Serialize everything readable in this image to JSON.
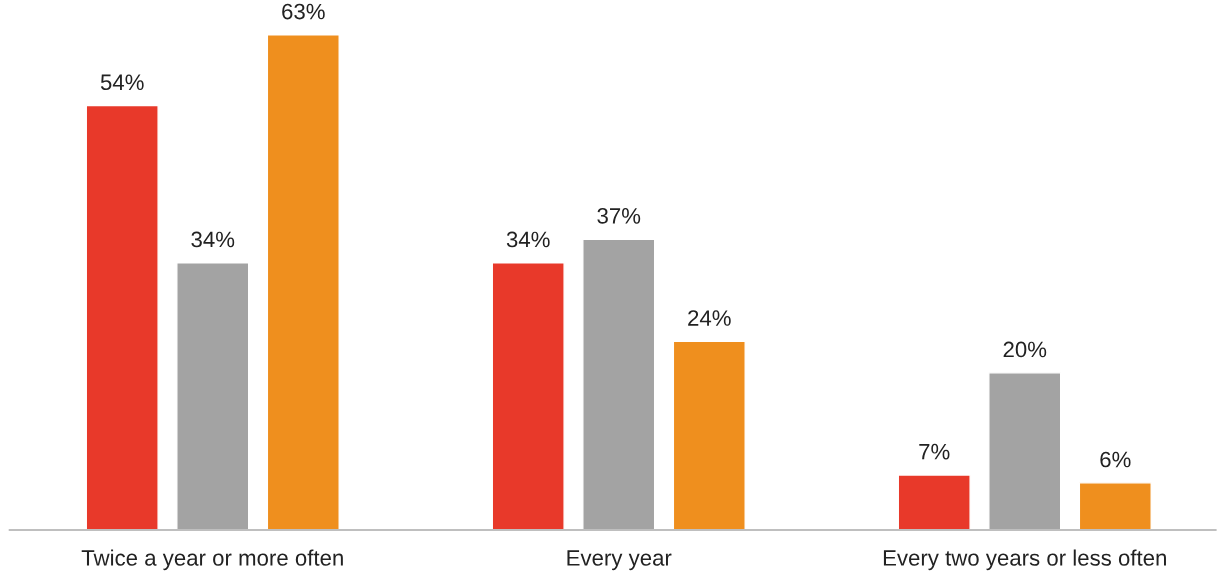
{
  "chart_data": {
    "type": "bar",
    "categories": [
      "Twice a year or more often",
      "Every year",
      "Every two years or less often"
    ],
    "series": [
      {
        "color": "#e8392a",
        "values": [
          54,
          34,
          7
        ],
        "value_labels": [
          "54%",
          "34%",
          "7%"
        ]
      },
      {
        "color": "#a3a3a3",
        "values": [
          34,
          37,
          20
        ],
        "value_labels": [
          "34%",
          "37%",
          "20%"
        ]
      },
      {
        "color": "#ef8f1e",
        "values": [
          63,
          24,
          6
        ],
        "value_labels": [
          "63%",
          "24%",
          "6%"
        ]
      }
    ],
    "grid": false,
    "legend": false
  }
}
